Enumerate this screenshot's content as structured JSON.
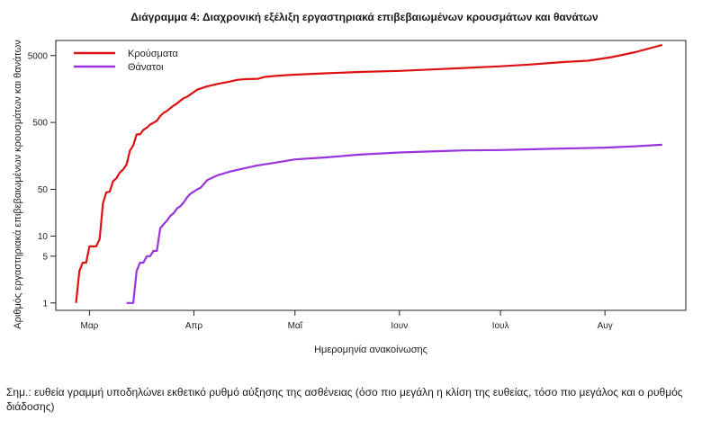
{
  "chart_data": {
    "type": "line",
    "title": "Διάγραμμα 4: Διαχρονική εξέλιξη εργαστηριακά επιβεβαιωμένων κρουσμάτων και θανάτων",
    "xlabel": "Ημερομηνία ανακοίνωσης",
    "ylabel": "Αριθμός εργαστηριακά επιβεβαιωμένων κρουσμάτων και θανάτων",
    "y_scale": "log",
    "ylim": [
      0.85,
      7200
    ],
    "y_ticks": [
      1,
      5,
      10,
      50,
      500,
      5000
    ],
    "x_range": [
      "2020-02-20",
      "2020-08-25"
    ],
    "x_ticks": [
      {
        "date": "2020-03-01",
        "label": "Μαρ"
      },
      {
        "date": "2020-04-01",
        "label": "Απρ"
      },
      {
        "date": "2020-05-01",
        "label": "Μαΐ"
      },
      {
        "date": "2020-06-01",
        "label": "Ιουν"
      },
      {
        "date": "2020-07-01",
        "label": "Ιουλ"
      },
      {
        "date": "2020-08-01",
        "label": "Αυγ"
      }
    ],
    "grid": false,
    "legend": "top-left",
    "series": [
      {
        "name": "Κρούσματα",
        "color": "#dd1111",
        "points": [
          [
            "2020-02-26",
            1
          ],
          [
            "2020-02-27",
            3
          ],
          [
            "2020-02-28",
            4
          ],
          [
            "2020-02-29",
            4
          ],
          [
            "2020-03-01",
            7
          ],
          [
            "2020-03-03",
            7
          ],
          [
            "2020-03-04",
            9
          ],
          [
            "2020-03-05",
            31
          ],
          [
            "2020-03-06",
            45
          ],
          [
            "2020-03-07",
            46
          ],
          [
            "2020-03-08",
            66
          ],
          [
            "2020-03-09",
            73
          ],
          [
            "2020-03-10",
            89
          ],
          [
            "2020-03-11",
            99
          ],
          [
            "2020-03-12",
            117
          ],
          [
            "2020-03-13",
            190
          ],
          [
            "2020-03-14",
            228
          ],
          [
            "2020-03-15",
            331
          ],
          [
            "2020-03-16",
            331
          ],
          [
            "2020-03-17",
            387
          ],
          [
            "2020-03-18",
            418
          ],
          [
            "2020-03-19",
            464
          ],
          [
            "2020-03-20",
            495
          ],
          [
            "2020-03-21",
            530
          ],
          [
            "2020-03-22",
            624
          ],
          [
            "2020-03-23",
            695
          ],
          [
            "2020-03-24",
            743
          ],
          [
            "2020-03-25",
            821
          ],
          [
            "2020-03-26",
            892
          ],
          [
            "2020-03-27",
            966
          ],
          [
            "2020-03-28",
            1061
          ],
          [
            "2020-03-29",
            1156
          ],
          [
            "2020-03-30",
            1212
          ],
          [
            "2020-03-31",
            1314
          ],
          [
            "2020-04-02",
            1544
          ],
          [
            "2020-04-05",
            1735
          ],
          [
            "2020-04-08",
            1884
          ],
          [
            "2020-04-11",
            2011
          ],
          [
            "2020-04-14",
            2170
          ],
          [
            "2020-04-17",
            2224
          ],
          [
            "2020-04-20",
            2245
          ],
          [
            "2020-04-22",
            2401
          ],
          [
            "2020-04-26",
            2506
          ],
          [
            "2020-05-01",
            2591
          ],
          [
            "2020-05-10",
            2710
          ],
          [
            "2020-05-20",
            2840
          ],
          [
            "2020-06-01",
            2952
          ],
          [
            "2020-06-10",
            3089
          ],
          [
            "2020-06-20",
            3256
          ],
          [
            "2020-07-01",
            3458
          ],
          [
            "2020-07-10",
            3672
          ],
          [
            "2020-07-20",
            4007
          ],
          [
            "2020-07-27",
            4193
          ],
          [
            "2020-08-03",
            4737
          ],
          [
            "2020-08-10",
            5623
          ],
          [
            "2020-08-18",
            7222
          ]
        ]
      },
      {
        "name": "Θάνατοι",
        "color": "#9933dd",
        "points": [
          [
            "2020-03-12",
            1
          ],
          [
            "2020-03-13",
            1
          ],
          [
            "2020-03-14",
            1
          ],
          [
            "2020-03-15",
            3
          ],
          [
            "2020-03-16",
            4
          ],
          [
            "2020-03-17",
            4
          ],
          [
            "2020-03-18",
            5
          ],
          [
            "2020-03-19",
            5
          ],
          [
            "2020-03-20",
            6
          ],
          [
            "2020-03-21",
            6
          ],
          [
            "2020-03-22",
            13
          ],
          [
            "2020-03-23",
            15
          ],
          [
            "2020-03-24",
            17
          ],
          [
            "2020-03-25",
            20
          ],
          [
            "2020-03-26",
            22
          ],
          [
            "2020-03-27",
            26
          ],
          [
            "2020-03-28",
            28
          ],
          [
            "2020-03-29",
            32
          ],
          [
            "2020-03-30",
            38
          ],
          [
            "2020-03-31",
            43
          ],
          [
            "2020-04-02",
            50
          ],
          [
            "2020-04-03",
            53
          ],
          [
            "2020-04-05",
            69
          ],
          [
            "2020-04-08",
            81
          ],
          [
            "2020-04-12",
            93
          ],
          [
            "2020-04-16",
            103
          ],
          [
            "2020-04-20",
            114
          ],
          [
            "2020-04-25",
            125
          ],
          [
            "2020-05-01",
            140
          ],
          [
            "2020-05-10",
            150
          ],
          [
            "2020-05-20",
            165
          ],
          [
            "2020-06-01",
            178
          ],
          [
            "2020-06-10",
            184
          ],
          [
            "2020-06-20",
            191
          ],
          [
            "2020-07-01",
            193
          ],
          [
            "2020-07-15",
            201
          ],
          [
            "2020-08-01",
            210
          ],
          [
            "2020-08-10",
            220
          ],
          [
            "2020-08-18",
            232
          ]
        ]
      }
    ]
  },
  "note": "Σημ.: ευθεία γραμμή υποδηλώνει εκθετικό ρυθμό αύξησης της ασθένειας (όσο πιο μεγάλη η κλίση της ευθείας, τόσο πιο μεγάλος και ο ρυθμός διάδοσης)"
}
